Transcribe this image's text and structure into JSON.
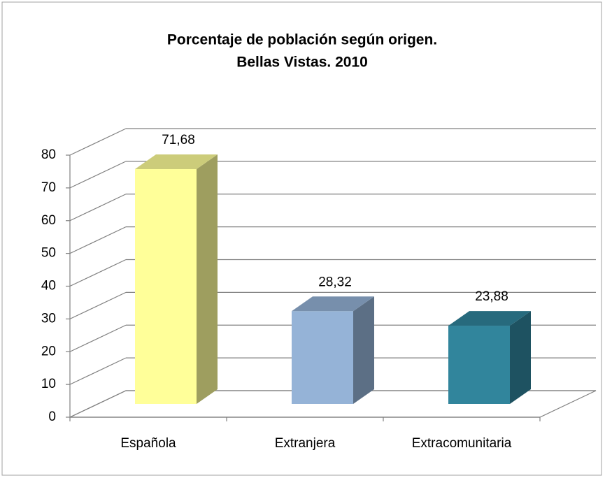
{
  "chart_data": {
    "type": "bar3d",
    "title": [
      "Porcentaje de población según origen.",
      "Bellas Vistas. 2010"
    ],
    "categories": [
      "Española",
      "Extranjera",
      "Extracomunitaria"
    ],
    "values": [
      71.68,
      28.32,
      23.88
    ],
    "value_labels": [
      "71,68",
      "28,32",
      "23,88"
    ],
    "colors": [
      "#ffff99",
      "#95b3d7",
      "#31859c"
    ],
    "ylim": [
      0,
      80
    ],
    "yticks": [
      0,
      10,
      20,
      30,
      40,
      50,
      60,
      70,
      80
    ],
    "grid": true
  }
}
